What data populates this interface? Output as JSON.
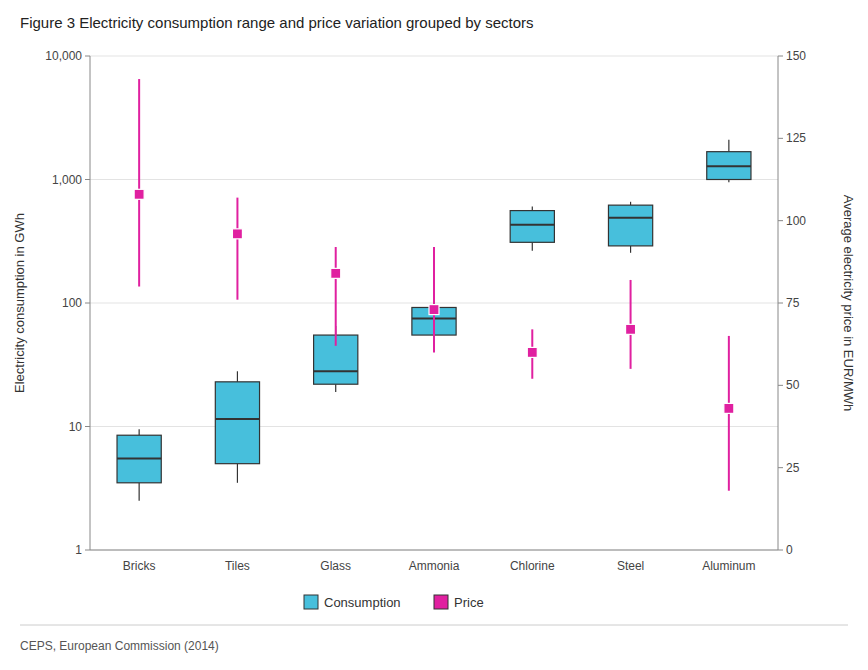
{
  "chart_data": {
    "type": "box",
    "title": "Figure 3 Electricity consumption range and price variation grouped by sectors",
    "source": "CEPS, European Commission (2014)",
    "categories": [
      "Bricks",
      "Tiles",
      "Glass",
      "Ammonia",
      "Chlorine",
      "Steel",
      "Aluminum"
    ],
    "ylabel": "Electricity consumption in GWh",
    "y2label": "Average electricity price in EUR/MWh",
    "log": "y",
    "ylim": [
      1,
      10000
    ],
    "yticks": [
      1,
      10,
      100,
      {
        "value": 1000,
        "label": "1,000"
      },
      {
        "value": 10000,
        "label": "10,000"
      }
    ],
    "y2lim": [
      0,
      150
    ],
    "y2ticks": [
      0,
      25,
      50,
      75,
      100,
      125,
      150
    ],
    "grid": true,
    "legend": "bottom",
    "series": [
      {
        "name": "Consumption",
        "type": "box",
        "color": "#47bfdc",
        "q1": [
          3.5,
          5.0,
          22.0,
          55.0,
          310.0,
          290.0,
          1000.0
        ],
        "median": [
          5.5,
          11.5,
          28.0,
          75.0,
          430.0,
          490.0,
          1280.0
        ],
        "q3": [
          8.5,
          23.0,
          55.0,
          92.0,
          560.0,
          620.0,
          1680.0
        ],
        "whisker_lo": [
          2.5,
          3.5,
          19.0,
          50.0,
          265.0,
          255.0,
          950.0
        ],
        "whisker_hi": [
          9.5,
          28.0,
          65.0,
          96.0,
          605.0,
          660.0,
          2100.0
        ]
      },
      {
        "name": "Price",
        "type": "range",
        "axis": "y2",
        "color": "#e020a0",
        "marker": "square",
        "values": [
          108,
          96,
          84,
          73,
          60,
          67,
          43
        ],
        "lo": [
          80,
          76,
          62,
          60,
          52,
          55,
          18
        ],
        "hi": [
          143,
          107,
          92,
          92,
          67,
          82,
          65
        ]
      }
    ]
  }
}
